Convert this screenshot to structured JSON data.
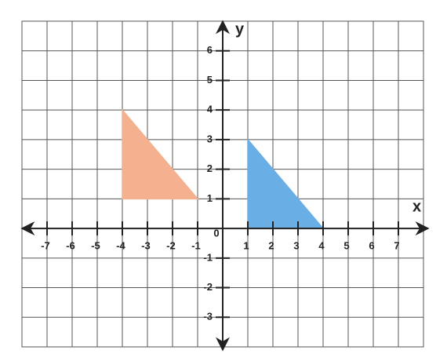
{
  "chart_data": {
    "type": "polygon",
    "x_label": "x",
    "y_label": "y",
    "xlim": [
      -8,
      8
    ],
    "ylim": [
      -4,
      7
    ],
    "xticks": [
      -7,
      -6,
      -5,
      -4,
      -3,
      -2,
      -1,
      0,
      1,
      2,
      3,
      4,
      5,
      6,
      7
    ],
    "yticks": [
      -3,
      -2,
      -1,
      1,
      2,
      3,
      4,
      5,
      6
    ],
    "grid": true,
    "series": [
      {
        "color": "#f4b08f",
        "x": [
          -4,
          -4,
          -1
        ],
        "values": [
          4,
          1,
          1
        ]
      },
      {
        "color": "#6aaee6",
        "x": [
          1,
          1,
          4
        ],
        "values": [
          3,
          0,
          0
        ]
      }
    ]
  }
}
